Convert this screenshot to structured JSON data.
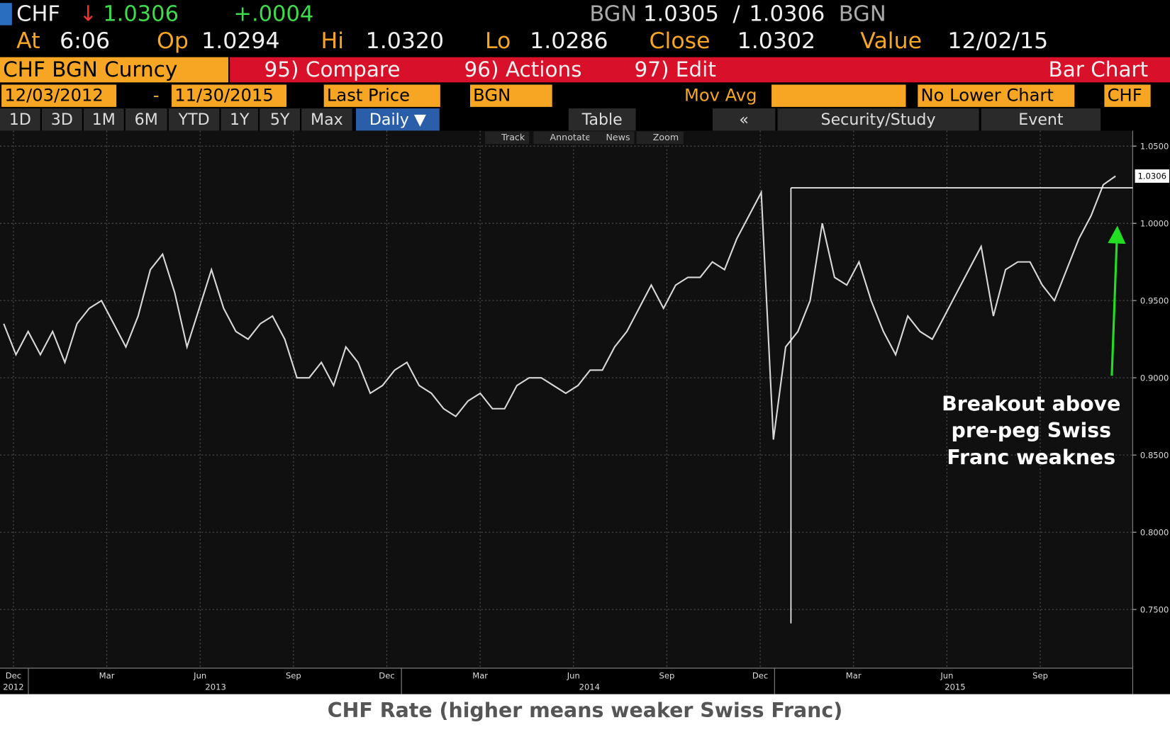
{
  "quote": {
    "ticker": "CHF",
    "arrow": "↓",
    "last": "1.0306",
    "change": "+.0004",
    "bid_src": "BGN",
    "bid": "1.0305",
    "sep": "/",
    "ask": "1.0306",
    "ask_src": "BGN"
  },
  "stats": [
    {
      "label": "At",
      "value": "6:06"
    },
    {
      "label": "Op",
      "value": "1.0294"
    },
    {
      "label": "Hi",
      "value": "1.0320"
    },
    {
      "label": "Lo",
      "value": "1.0286"
    },
    {
      "label": "Close",
      "value": "1.0302"
    },
    {
      "label": "Value",
      "value": "12/02/15"
    }
  ],
  "menu": {
    "security": "CHF BGN Curncy",
    "items": [
      "95) Compare",
      "96) Actions",
      "97) Edit"
    ],
    "view": "Bar Chart"
  },
  "settings": {
    "start": "12/03/2012",
    "dash": "-",
    "end": "11/30/2015",
    "field": "Last Price",
    "source": "BGN",
    "study": "Mov Avg",
    "lower": "No Lower Chart",
    "currency": "CHF"
  },
  "ranges": [
    "1D",
    "3D",
    "1M",
    "6M",
    "YTD",
    "1Y",
    "5Y",
    "Max"
  ],
  "period": "Daily",
  "table": "Table",
  "back": "«",
  "security_study": "Security/Study",
  "event": "Event",
  "tools": [
    "Track",
    "Annotate",
    "News",
    "Zoom"
  ],
  "caption": "CHF Rate (higher means weaker Swiss Franc)",
  "chart_data": {
    "type": "line",
    "color": "#d8d8d8",
    "values": [
      0.935,
      0.915,
      0.93,
      0.915,
      0.93,
      0.91,
      0.935,
      0.945,
      0.95,
      0.935,
      0.92,
      0.94,
      0.97,
      0.98,
      0.955,
      0.92,
      0.945,
      0.97,
      0.945,
      0.93,
      0.925,
      0.935,
      0.94,
      0.925,
      0.9,
      0.9,
      0.91,
      0.895,
      0.92,
      0.91,
      0.89,
      0.895,
      0.905,
      0.91,
      0.895,
      0.89,
      0.88,
      0.875,
      0.885,
      0.89,
      0.88,
      0.88,
      0.895,
      0.9,
      0.9,
      0.895,
      0.89,
      0.895,
      0.905,
      0.905,
      0.92,
      0.93,
      0.945,
      0.96,
      0.945,
      0.96,
      0.965,
      0.965,
      0.975,
      0.97,
      0.99,
      1.005,
      1.02,
      0.86,
      0.92,
      0.93,
      0.95,
      1.0,
      0.965,
      0.96,
      0.975,
      0.95,
      0.93,
      0.915,
      0.94,
      0.93,
      0.925,
      0.94,
      0.955,
      0.97,
      0.985,
      0.94,
      0.97,
      0.975,
      0.975,
      0.96,
      0.95,
      0.97,
      0.99,
      1.005,
      1.025,
      1.0306
    ],
    "ylim": [
      0.712,
      1.06
    ],
    "yticks": [
      {
        "value": 0.75,
        "label": "0.7500"
      },
      {
        "value": 0.8,
        "label": "0.8000"
      },
      {
        "value": 0.85,
        "label": "0.8500"
      },
      {
        "value": 0.9,
        "label": "0.9000"
      },
      {
        "value": 0.95,
        "label": "0.9500"
      },
      {
        "value": 1.0,
        "label": "1.0000"
      },
      {
        "value": 1.05,
        "label": "1.0500"
      }
    ],
    "grid": true,
    "months": [
      "Dec",
      "Mar",
      "Jun",
      "Sep",
      "Dec",
      "Mar",
      "Jun",
      "Sep",
      "Dec",
      "Mar",
      "Jun",
      "Sep"
    ],
    "years": [
      "2012",
      "2013",
      "2014",
      "2015"
    ],
    "resistance": 1.023,
    "spike_low": 0.741,
    "annotation": [
      "Breakout above",
      "pre-peg Swiss",
      "Franc weaknes"
    ]
  }
}
